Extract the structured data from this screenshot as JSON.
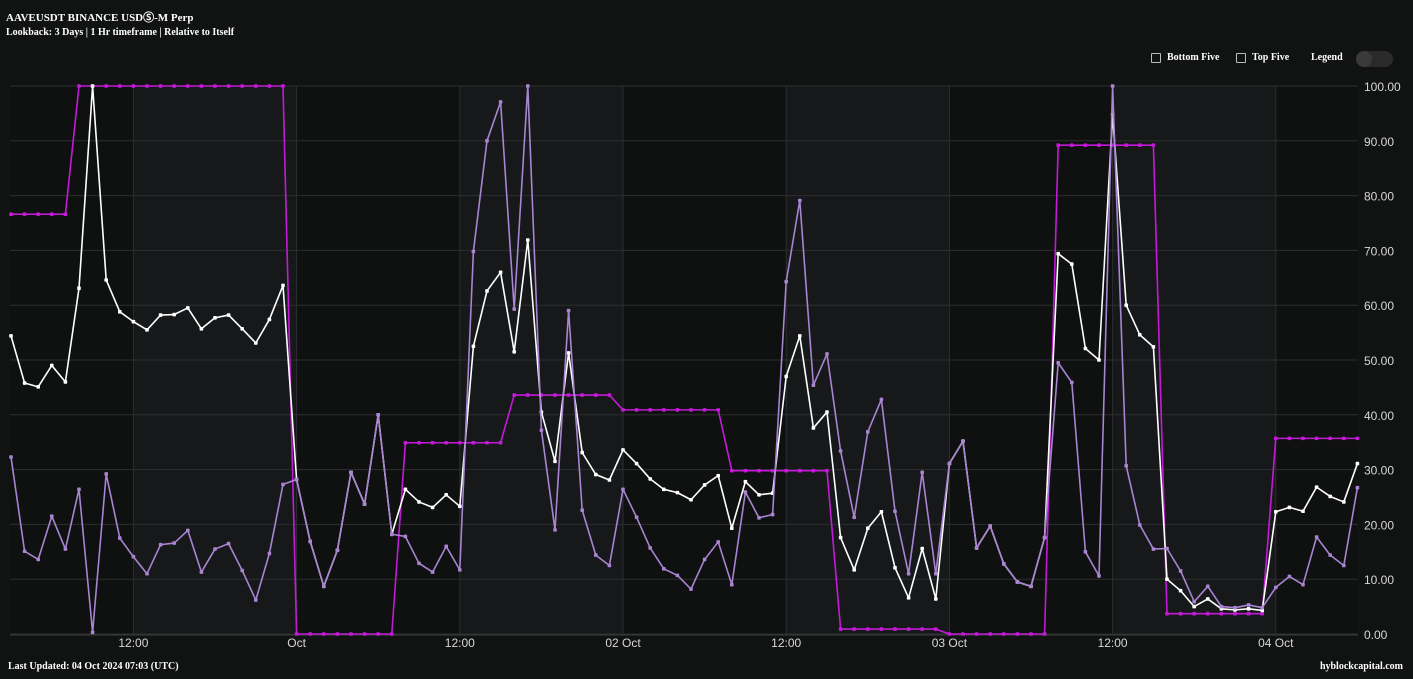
{
  "header": {
    "title": "AAVEUSDT BINANCE USDⓈ-M Perp",
    "subtitle": "Lookback: 3 Days | 1 Hr timeframe | Relative to Itself"
  },
  "controls": {
    "bottom_five": "Bottom Five",
    "top_five": "Top Five",
    "legend": "Legend",
    "legend_on": false
  },
  "footer": {
    "last_updated": "Last Updated: 04 Oct 2024 07:03 (UTC)",
    "brand": "hyblockcapital.com"
  },
  "chart_data": {
    "type": "line",
    "title": "AAVEUSDT BINANCE USDⓈ-M Perp",
    "xlabel": "",
    "ylabel": "",
    "ylim": [
      0,
      100
    ],
    "grid": true,
    "legend": "hidden",
    "x_unit": "hourly points, 30 Sep 03:00 to 04 Oct 06:00 (UTC)",
    "x_ticks": [
      {
        "index": 9,
        "label": "12:00"
      },
      {
        "index": 21,
        "label": "Oct"
      },
      {
        "index": 33,
        "label": "12:00"
      },
      {
        "index": 45,
        "label": "02 Oct"
      },
      {
        "index": 57,
        "label": "12:00"
      },
      {
        "index": 69,
        "label": "03 Oct"
      },
      {
        "index": 81,
        "label": "12:00"
      },
      {
        "index": 93,
        "label": "04 Oct"
      }
    ],
    "y_ticks": [
      "0.00",
      "10.00",
      "20.00",
      "30.00",
      "40.00",
      "50.00",
      "60.00",
      "70.00",
      "80.00",
      "90.00",
      "100.00"
    ],
    "series": [
      {
        "color": "#c41ad8",
        "values": [
          76.6,
          76.6,
          76.6,
          76.6,
          76.6,
          100,
          100,
          100,
          100,
          100,
          100,
          100,
          100,
          100,
          100,
          100,
          100,
          100,
          100,
          100,
          100,
          0,
          0,
          0,
          0,
          0,
          0,
          0,
          0,
          34.9,
          34.9,
          34.9,
          34.9,
          34.9,
          34.9,
          34.9,
          34.9,
          43.6,
          43.6,
          43.6,
          43.6,
          43.6,
          43.6,
          43.6,
          43.6,
          40.9,
          40.9,
          40.9,
          40.9,
          40.9,
          40.9,
          40.9,
          40.9,
          29.8,
          29.8,
          29.8,
          29.8,
          29.8,
          29.8,
          29.8,
          29.8,
          0.9,
          0.9,
          0.9,
          0.9,
          0.9,
          0.9,
          0.9,
          0.9,
          0,
          0,
          0,
          0,
          0,
          0,
          0,
          0,
          89.2,
          89.2,
          89.2,
          89.2,
          89.2,
          89.2,
          89.2,
          89.2,
          3.7,
          3.7,
          3.7,
          3.7,
          3.7,
          3.7,
          3.7,
          3.7,
          35.7,
          35.7,
          35.7,
          35.7,
          35.7,
          35.7,
          35.7
        ]
      },
      {
        "color": "#ffffff",
        "values": [
          54.4,
          45.8,
          45.1,
          49.0,
          46.0,
          63.1,
          100,
          64.6,
          58.8,
          57.0,
          55.5,
          58.2,
          58.3,
          59.5,
          55.7,
          57.7,
          58.2,
          55.7,
          53.1,
          57.4,
          63.6,
          28.2,
          16.9,
          8.7,
          15.3,
          29.5,
          23.7,
          40.0,
          18.2,
          26.4,
          24.1,
          23.1,
          25.4,
          23.3,
          52.5,
          62.6,
          66.0,
          51.5,
          71.9,
          40.5,
          31.5,
          51.3,
          33.1,
          29.1,
          28.1,
          33.6,
          31.1,
          28.3,
          26.4,
          25.8,
          24.5,
          27.2,
          28.9,
          19.3,
          27.8,
          25.4,
          25.7,
          47.0,
          54.4,
          37.6,
          40.5,
          17.6,
          11.7,
          19.3,
          22.3,
          12.1,
          6.6,
          15.6,
          6.4,
          31.1,
          35.2,
          15.7,
          19.7,
          12.8,
          9.5,
          8.7,
          17.6,
          69.4,
          67.5,
          52.1,
          50.0,
          94.8,
          60.0,
          54.6,
          52.4,
          10.0,
          7.9,
          5.0,
          6.4,
          4.6,
          4.4,
          4.6,
          4.3,
          22.3,
          23.1,
          22.4,
          26.8,
          25.1,
          24.1,
          31.1
        ]
      },
      {
        "color": "#a984d2",
        "values": [
          32.3,
          15.1,
          13.6,
          21.5,
          15.5,
          26.4,
          0.3,
          29.2,
          17.5,
          14.1,
          11.0,
          16.3,
          16.6,
          18.9,
          11.3,
          15.5,
          16.5,
          11.6,
          6.2,
          14.7,
          27.3,
          28.2,
          16.9,
          8.7,
          15.3,
          29.5,
          23.7,
          40.0,
          18.2,
          17.8,
          12.9,
          11.3,
          16.0,
          11.7,
          69.8,
          90.0,
          97.1,
          59.3,
          100,
          37.2,
          19.0,
          59.0,
          22.6,
          14.4,
          12.5,
          26.4,
          21.3,
          15.7,
          11.9,
          10.7,
          8.2,
          13.6,
          16.8,
          9.0,
          25.9,
          21.2,
          21.8,
          64.3,
          79.1,
          45.4,
          51.1,
          33.4,
          21.3,
          36.9,
          42.8,
          22.4,
          11.0,
          29.5,
          11.0,
          31.1,
          35.2,
          15.7,
          19.7,
          12.8,
          9.5,
          8.7,
          17.6,
          49.5,
          45.9,
          15.0,
          10.6,
          100,
          30.7,
          19.9,
          15.5,
          15.6,
          11.5,
          5.9,
          8.7,
          5.0,
          4.8,
          5.3,
          4.8,
          8.5,
          10.5,
          9.0,
          17.7,
          14.4,
          12.5,
          26.7
        ]
      }
    ]
  }
}
